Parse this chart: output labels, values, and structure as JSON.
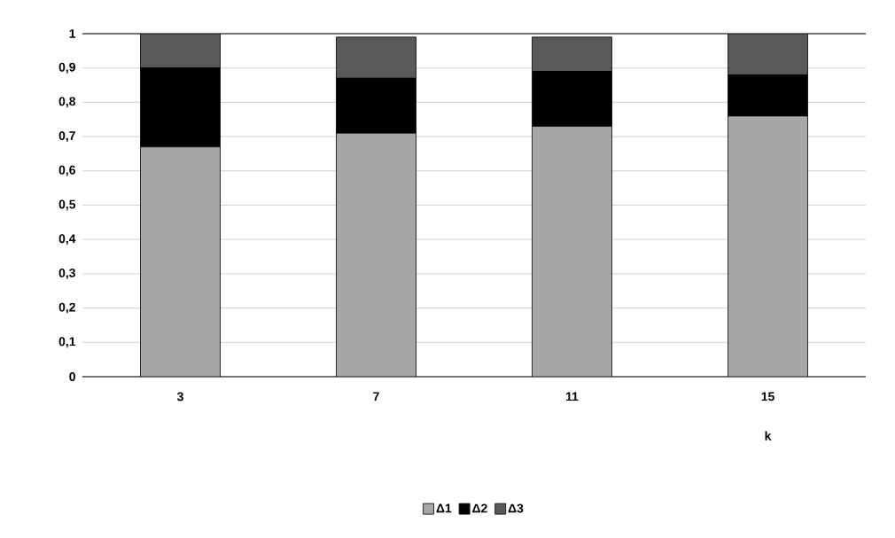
{
  "chart_data": {
    "type": "bar",
    "stacked": true,
    "xlabel": "k",
    "categories": [
      "3",
      "7",
      "11",
      "15"
    ],
    "series": [
      {
        "name": "Δ1",
        "color": "#a6a6a6",
        "values": [
          0.67,
          0.71,
          0.73,
          0.76
        ]
      },
      {
        "name": "Δ2",
        "color": "#000000",
        "values": [
          0.23,
          0.16,
          0.16,
          0.12
        ]
      },
      {
        "name": "Δ3",
        "color": "#595959",
        "values": [
          0.1,
          0.12,
          0.1,
          0.12
        ]
      }
    ],
    "ylim": [
      0,
      1
    ],
    "yticks": [
      0,
      {
        "value": 0.1,
        "label": "0,1"
      },
      {
        "value": 0.2,
        "label": "0,2"
      },
      {
        "value": 0.3,
        "label": "0,3"
      },
      {
        "value": 0.4,
        "label": "0,4"
      },
      {
        "value": 0.5,
        "label": "0,5"
      },
      {
        "value": 0.6,
        "label": "0,6"
      },
      {
        "value": 0.7,
        "label": "0,7"
      },
      {
        "value": 0.8,
        "label": "0,8"
      },
      {
        "value": 0.9,
        "label": "0,9"
      },
      1
    ],
    "grid": "y",
    "legend": "bottom"
  }
}
